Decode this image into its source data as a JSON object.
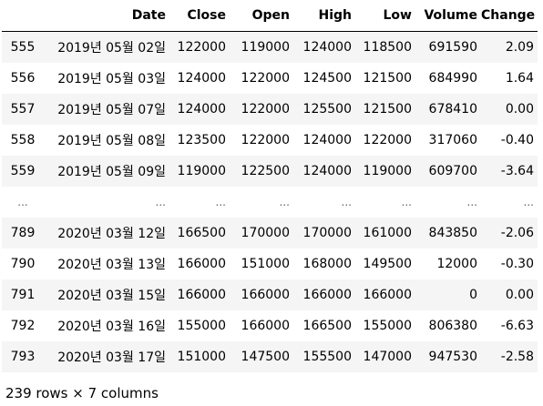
{
  "table": {
    "columns": [
      "Date",
      "Close",
      "Open",
      "High",
      "Low",
      "Volume",
      "Change"
    ],
    "rows": [
      {
        "idx": "555",
        "Date": "2019년 05월 02일",
        "Close": "122000",
        "Open": "119000",
        "High": "124000",
        "Low": "118500",
        "Volume": "691590",
        "Change": "2.09"
      },
      {
        "idx": "556",
        "Date": "2019년 05월 03일",
        "Close": "124000",
        "Open": "122000",
        "High": "124500",
        "Low": "121500",
        "Volume": "684990",
        "Change": "1.64"
      },
      {
        "idx": "557",
        "Date": "2019년 05월 07일",
        "Close": "124000",
        "Open": "122000",
        "High": "125500",
        "Low": "121500",
        "Volume": "678410",
        "Change": "0.00"
      },
      {
        "idx": "558",
        "Date": "2019년 05월 08일",
        "Close": "123500",
        "Open": "122000",
        "High": "124000",
        "Low": "122000",
        "Volume": "317060",
        "Change": "-0.40"
      },
      {
        "idx": "559",
        "Date": "2019년 05월 09일",
        "Close": "119000",
        "Open": "122500",
        "High": "124000",
        "Low": "119000",
        "Volume": "609700",
        "Change": "-3.64"
      },
      {
        "idx": "...",
        "Date": "...",
        "Close": "...",
        "Open": "...",
        "High": "...",
        "Low": "...",
        "Volume": "...",
        "Change": "..."
      },
      {
        "idx": "789",
        "Date": "2020년 03월 12일",
        "Close": "166500",
        "Open": "170000",
        "High": "170000",
        "Low": "161000",
        "Volume": "843850",
        "Change": "-2.06"
      },
      {
        "idx": "790",
        "Date": "2020년 03월 13일",
        "Close": "166000",
        "Open": "151000",
        "High": "168000",
        "Low": "149500",
        "Volume": "12000",
        "Change": "-0.30"
      },
      {
        "idx": "791",
        "Date": "2020년 03월 15일",
        "Close": "166000",
        "Open": "166000",
        "High": "166000",
        "Low": "166000",
        "Volume": "0",
        "Change": "0.00"
      },
      {
        "idx": "792",
        "Date": "2020년 03월 16일",
        "Close": "155000",
        "Open": "166000",
        "High": "166500",
        "Low": "155000",
        "Volume": "806380",
        "Change": "-6.63"
      },
      {
        "idx": "793",
        "Date": "2020년 03월 17일",
        "Close": "151000",
        "Open": "147500",
        "High": "155500",
        "Low": "147000",
        "Volume": "947530",
        "Change": "-2.58"
      }
    ]
  },
  "shape_note": "239 rows × 7 columns"
}
